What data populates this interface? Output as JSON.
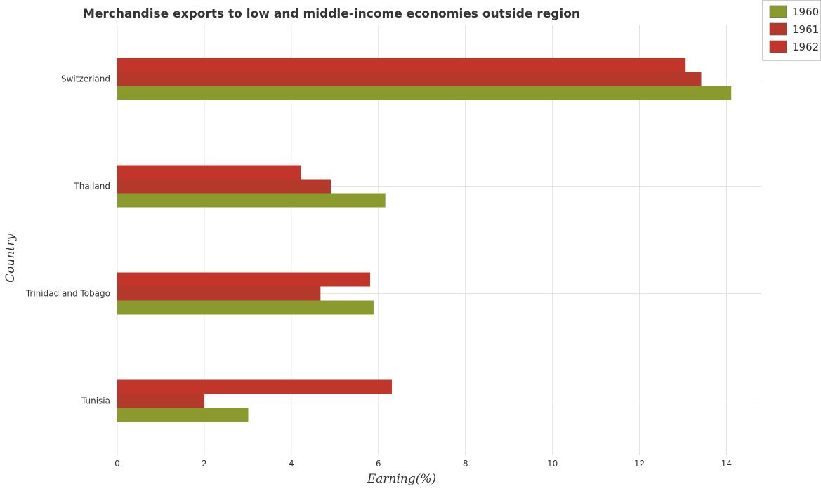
{
  "chart_data": {
    "type": "bar",
    "orientation": "horizontal",
    "title": "Merchandise exports to low and middle-income economies outside region",
    "xlabel": "Earning(%)",
    "ylabel": "Country",
    "categories": [
      "Switzerland",
      "Thailand",
      "Trinidad and Tobago",
      "Tunisia"
    ],
    "series": [
      {
        "name": "1960",
        "color": "#8b9a2c",
        "values": [
          14.11,
          6.16,
          5.89,
          3.01
        ]
      },
      {
        "name": "1961",
        "color": "#b5392b",
        "values": [
          13.42,
          4.91,
          4.67,
          2.0
        ]
      },
      {
        "name": "1962",
        "color": "#c1352a",
        "values": [
          13.06,
          4.22,
          5.81,
          6.31
        ]
      }
    ],
    "xlim": [
      0,
      14.8
    ],
    "xticks": [
      "0",
      "2",
      "4",
      "6",
      "8",
      "10",
      "12",
      "14"
    ],
    "grid": true,
    "legend_position": "top-right"
  }
}
